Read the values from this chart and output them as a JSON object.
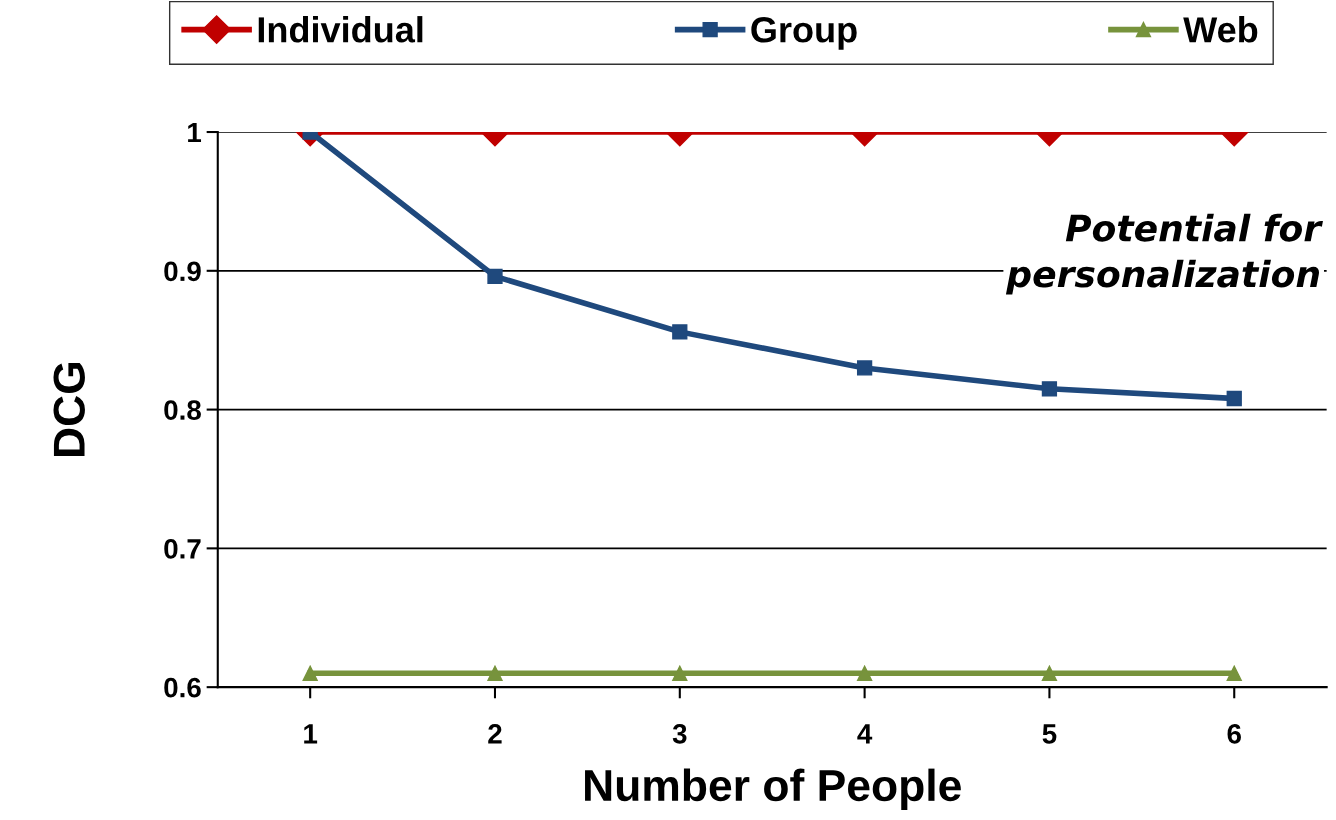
{
  "chart_data": {
    "type": "line",
    "xlabel": "Number of People",
    "ylabel": "DCG",
    "categories": [
      "1",
      "2",
      "3",
      "4",
      "5",
      "6"
    ],
    "series": [
      {
        "name": "Individual",
        "color": "#c00000",
        "marker": "diamond",
        "values": [
          1,
          1,
          1,
          1,
          1,
          1
        ]
      },
      {
        "name": "Group",
        "color": "#1f497d",
        "marker": "square",
        "values": [
          1,
          0.896,
          0.856,
          0.83,
          0.815,
          0.808
        ]
      },
      {
        "name": "Web",
        "color": "#77933c",
        "marker": "triangle",
        "values": [
          0.61,
          0.61,
          0.61,
          0.61,
          0.61,
          0.61
        ]
      }
    ],
    "ylim": [
      0.6,
      1
    ],
    "yticks": [
      0.6,
      0.7,
      0.8,
      0.9,
      1
    ],
    "grid": "y",
    "legend": "top",
    "annotations": [
      "Potential for\npersonalization"
    ]
  }
}
